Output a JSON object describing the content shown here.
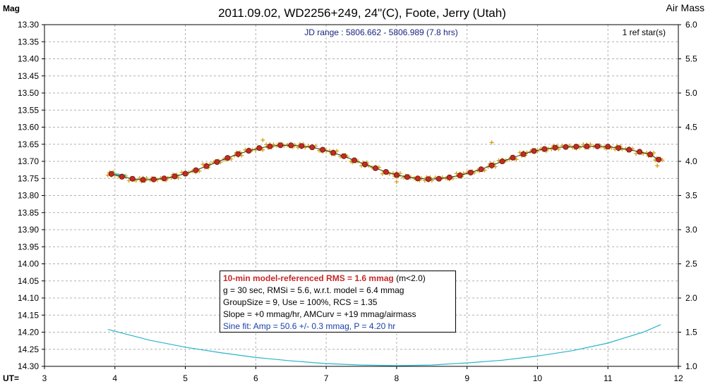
{
  "chart_data": {
    "type": "scatter",
    "title": "2011.09.02, WD2256+249, 24\"(C), Foote, Jerry (Utah)",
    "left_axis_label": "Mag",
    "right_axis_label": "Air Mass",
    "x_axis_label": "UT=",
    "jd_range_text": "JD range : 5806.662 - 5806.989 (7.8 hrs)",
    "ref_stars_text": "1 ref star(s)",
    "xlim": [
      3,
      12
    ],
    "ylim_mag": [
      13.3,
      14.3
    ],
    "ylim_airmass": [
      1.0,
      6.0
    ],
    "x_ticks": [
      "3",
      "4",
      "5",
      "6",
      "7",
      "8",
      "9",
      "10",
      "11",
      "12"
    ],
    "y_ticks_mag": [
      "13.30",
      "13.35",
      "13.40",
      "13.45",
      "13.50",
      "13.55",
      "13.60",
      "13.65",
      "13.70",
      "13.75",
      "13.80",
      "13.85",
      "13.90",
      "13.95",
      "14.00",
      "14.05",
      "14.10",
      "14.15",
      "14.20",
      "14.25",
      "14.30"
    ],
    "y_ticks_airmass": [
      "6.0",
      "5.5",
      "5.0",
      "4.5",
      "4.0",
      "3.5",
      "3.0",
      "2.5",
      "2.0",
      "1.5",
      "1.0"
    ],
    "grid": true,
    "colors": {
      "raw_points": "#d4a017",
      "binned_points_fill": "#c62828",
      "binned_points_edge": "#5a1a00",
      "model_line": "#2e2e2e",
      "airmass_line": "#26b5c9",
      "fit_segment": "#26b5c9",
      "grid": "#b0b0b0"
    },
    "series": [
      {
        "name": "binned",
        "x": [
          3.95,
          4.1,
          4.25,
          4.4,
          4.55,
          4.7,
          4.85,
          5.0,
          5.15,
          5.3,
          5.45,
          5.6,
          5.75,
          5.9,
          6.05,
          6.2,
          6.35,
          6.5,
          6.65,
          6.8,
          6.95,
          7.1,
          7.25,
          7.4,
          7.55,
          7.7,
          7.85,
          8.0,
          8.15,
          8.3,
          8.45,
          8.6,
          8.75,
          8.9,
          9.05,
          9.2,
          9.35,
          9.5,
          9.65,
          9.8,
          9.95,
          10.1,
          10.25,
          10.4,
          10.55,
          10.7,
          10.85,
          11.0,
          11.15,
          11.3,
          11.45,
          11.6,
          11.72
        ],
        "y": [
          13.737,
          13.745,
          13.751,
          13.754,
          13.753,
          13.75,
          13.744,
          13.736,
          13.726,
          13.714,
          13.702,
          13.69,
          13.679,
          13.669,
          13.661,
          13.656,
          13.653,
          13.653,
          13.655,
          13.659,
          13.666,
          13.675,
          13.685,
          13.697,
          13.709,
          13.72,
          13.731,
          13.74,
          13.746,
          13.75,
          13.752,
          13.751,
          13.747,
          13.741,
          13.733,
          13.723,
          13.712,
          13.7,
          13.689,
          13.679,
          13.67,
          13.664,
          13.66,
          13.658,
          13.657,
          13.656,
          13.656,
          13.657,
          13.661,
          13.666,
          13.672,
          13.68,
          13.695
        ]
      },
      {
        "name": "air mass",
        "x": [
          3.9,
          4.5,
          5.0,
          5.5,
          6.0,
          6.5,
          7.0,
          7.5,
          8.0,
          8.5,
          9.0,
          9.5,
          10.0,
          10.5,
          11.0,
          11.5,
          11.75
        ],
        "y": [
          1.54,
          1.38,
          1.28,
          1.2,
          1.13,
          1.08,
          1.04,
          1.02,
          1.01,
          1.02,
          1.05,
          1.09,
          1.15,
          1.23,
          1.34,
          1.5,
          1.61
        ]
      }
    ],
    "stats_box": {
      "rms_main": "10-min model-referenced RMS = 1.6 mmag",
      "rms_note": "(m<2.0)",
      "line1": "g = 30 sec, RMSi = 5.6, w.r.t. model = 6.4 mmag",
      "line2": "GroupSize = 9, Use = 100%, RCS = 1.35",
      "line3": "Slope = +0 mmag/hr, AMCurv = +19 mmag/airmass",
      "line4": "Sine fit: Amp = 50.6 +/- 0.3 mmag, P = 4.20 hr"
    }
  }
}
